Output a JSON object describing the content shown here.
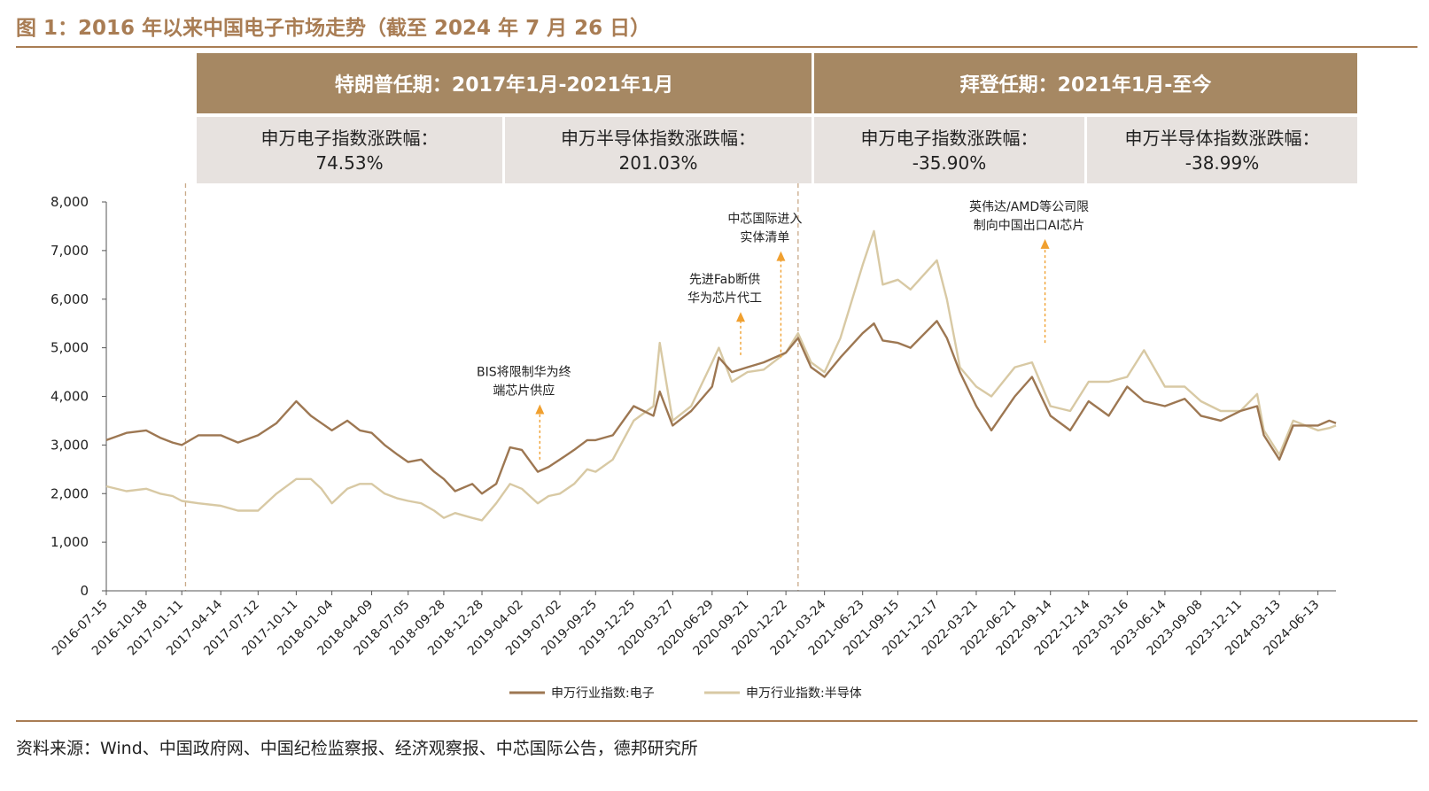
{
  "figure_title": "图 1：2016 年以来中国电子市场走势（截至 2024 年 7 月 26 日）",
  "source_note": "资料来源：Wind、中国政府网、中国纪检监察报、经济观察报、中芯国际公告，德邦研究所",
  "periods": [
    {
      "title": "特朗普任期：2017年1月-2021年1月",
      "cells": [
        {
          "label": "申万电子指数涨跌幅：",
          "value": "74.53%"
        },
        {
          "label": "申万半导体指数涨跌幅：",
          "value": "201.03%"
        }
      ]
    },
    {
      "title": "拜登任期：2021年1月-至今",
      "cells": [
        {
          "label": "申万电子指数涨跌幅：",
          "value": "-35.90%"
        },
        {
          "label": "申万半导体指数涨跌幅：",
          "value": "-38.99%"
        }
      ]
    }
  ],
  "colors": {
    "brand": "#a97d54",
    "header_fill": "#a68863",
    "cell_fill": "#e7e2df",
    "electronics": "#9d7752",
    "semiconductor": "#d8c9a4",
    "annotation_arrow": "#f0a030",
    "divider": "#c9a988"
  },
  "chart_data": {
    "type": "line",
    "title": "",
    "xlabel": "",
    "ylabel": "",
    "ylim": [
      0,
      8000
    ],
    "y_ticks": [
      "8,000",
      "7,000",
      "6,000",
      "5,000",
      "4,000",
      "3,000",
      "2,000",
      "1,000",
      "0"
    ],
    "x_tick_labels": [
      "2016-07-15",
      "2016-10-18",
      "2017-01-11",
      "2017-04-14",
      "2017-07-12",
      "2017-10-11",
      "2018-01-04",
      "2018-04-09",
      "2018-07-05",
      "2018-09-28",
      "2018-12-28",
      "2019-04-02",
      "2019-07-02",
      "2019-09-25",
      "2019-12-25",
      "2020-03-27",
      "2020-06-29",
      "2020-09-21",
      "2020-12-22",
      "2021-03-24",
      "2021-06-23",
      "2021-09-15",
      "2021-12-17",
      "2022-03-21",
      "2022-06-21",
      "2022-09-14",
      "2022-12-14",
      "2023-03-16",
      "2023-06-14",
      "2023-09-08",
      "2023-12-11",
      "2024-03-13",
      "2024-06-13"
    ],
    "dividers": [
      "2017-01-20",
      "2021-01-20"
    ],
    "legend": "bottom",
    "grid": false,
    "series": [
      {
        "name": "申万行业指数:电子",
        "color": "#9d7752",
        "x": [
          "2016-07-15",
          "2016-09-01",
          "2016-10-18",
          "2016-11-20",
          "2016-12-20",
          "2017-01-11",
          "2017-02-20",
          "2017-04-14",
          "2017-05-25",
          "2017-07-12",
          "2017-08-25",
          "2017-10-11",
          "2017-11-15",
          "2017-12-10",
          "2018-01-04",
          "2018-02-10",
          "2018-03-12",
          "2018-04-09",
          "2018-05-10",
          "2018-06-10",
          "2018-07-05",
          "2018-08-05",
          "2018-09-05",
          "2018-09-28",
          "2018-10-25",
          "2018-12-05",
          "2018-12-28",
          "2019-01-31",
          "2019-03-05",
          "2019-04-02",
          "2019-05-10",
          "2019-06-05",
          "2019-07-02",
          "2019-08-05",
          "2019-09-05",
          "2019-09-25",
          "2019-11-05",
          "2019-12-25",
          "2020-02-10",
          "2020-02-25",
          "2020-03-27",
          "2020-05-10",
          "2020-06-29",
          "2020-07-15",
          "2020-08-15",
          "2020-09-21",
          "2020-10-30",
          "2020-12-22",
          "2021-01-20",
          "2021-02-20",
          "2021-03-24",
          "2021-05-01",
          "2021-06-23",
          "2021-07-20",
          "2021-08-10",
          "2021-09-15",
          "2021-10-15",
          "2021-12-17",
          "2022-01-10",
          "2022-02-10",
          "2022-03-21",
          "2022-04-26",
          "2022-06-21",
          "2022-08-01",
          "2022-09-14",
          "2022-10-31",
          "2022-12-14",
          "2023-01-31",
          "2023-03-16",
          "2023-04-25",
          "2023-06-14",
          "2023-07-31",
          "2023-09-08",
          "2023-10-25",
          "2023-12-11",
          "2024-01-20",
          "2024-02-05",
          "2024-03-13",
          "2024-04-15",
          "2024-06-13",
          "2024-07-10",
          "2024-07-26"
        ],
        "values": [
          3100,
          3250,
          3300,
          3150,
          3050,
          3000,
          3200,
          3200,
          3050,
          3200,
          3450,
          3900,
          3600,
          3450,
          3300,
          3500,
          3300,
          3250,
          3000,
          2800,
          2650,
          2700,
          2450,
          2300,
          2050,
          2200,
          2000,
          2200,
          2950,
          2900,
          2450,
          2550,
          2700,
          2900,
          3100,
          3100,
          3200,
          3800,
          3600,
          4100,
          3400,
          3700,
          4200,
          4800,
          4500,
          4600,
          4700,
          4900,
          5200,
          4600,
          4400,
          4800,
          5300,
          5500,
          5150,
          5100,
          5000,
          5550,
          5200,
          4500,
          3800,
          3300,
          4000,
          4400,
          3600,
          3300,
          3900,
          3600,
          4200,
          3900,
          3800,
          3950,
          3600,
          3500,
          3700,
          3800,
          3200,
          2700,
          3400,
          3400,
          3500,
          3450
        ]
      },
      {
        "name": "申万行业指数:半导体",
        "color": "#d8c9a4",
        "x": [
          "2016-07-15",
          "2016-09-01",
          "2016-10-18",
          "2016-11-20",
          "2016-12-20",
          "2017-01-11",
          "2017-02-20",
          "2017-04-14",
          "2017-05-25",
          "2017-07-12",
          "2017-08-25",
          "2017-10-11",
          "2017-11-15",
          "2017-12-10",
          "2018-01-04",
          "2018-02-10",
          "2018-03-12",
          "2018-04-09",
          "2018-05-10",
          "2018-06-10",
          "2018-07-05",
          "2018-08-05",
          "2018-09-05",
          "2018-09-28",
          "2018-10-25",
          "2018-12-05",
          "2018-12-28",
          "2019-01-31",
          "2019-03-05",
          "2019-04-02",
          "2019-05-10",
          "2019-06-05",
          "2019-07-02",
          "2019-08-05",
          "2019-09-05",
          "2019-09-25",
          "2019-11-05",
          "2019-12-25",
          "2020-02-10",
          "2020-02-25",
          "2020-03-27",
          "2020-05-10",
          "2020-06-29",
          "2020-07-15",
          "2020-08-15",
          "2020-09-21",
          "2020-10-30",
          "2020-12-22",
          "2021-01-20",
          "2021-02-20",
          "2021-03-24",
          "2021-05-01",
          "2021-06-23",
          "2021-07-20",
          "2021-08-10",
          "2021-09-15",
          "2021-10-15",
          "2021-12-17",
          "2022-01-10",
          "2022-02-10",
          "2022-03-21",
          "2022-04-26",
          "2022-06-21",
          "2022-08-01",
          "2022-09-14",
          "2022-10-31",
          "2022-12-14",
          "2023-01-31",
          "2023-03-16",
          "2023-04-25",
          "2023-06-14",
          "2023-07-31",
          "2023-09-08",
          "2023-10-25",
          "2023-12-11",
          "2024-01-20",
          "2024-02-05",
          "2024-03-13",
          "2024-04-15",
          "2024-06-13",
          "2024-07-10",
          "2024-07-26"
        ],
        "values": [
          2150,
          2050,
          2100,
          2000,
          1950,
          1850,
          1800,
          1750,
          1650,
          1650,
          2000,
          2300,
          2300,
          2100,
          1800,
          2100,
          2200,
          2200,
          2000,
          1900,
          1850,
          1800,
          1650,
          1500,
          1600,
          1500,
          1450,
          1800,
          2200,
          2100,
          1800,
          1950,
          2000,
          2200,
          2500,
          2450,
          2700,
          3500,
          3800,
          5100,
          3500,
          3800,
          4700,
          5000,
          4300,
          4500,
          4550,
          4900,
          5300,
          4700,
          4500,
          5200,
          6700,
          7400,
          6300,
          6400,
          6200,
          6800,
          6000,
          4600,
          4200,
          4000,
          4600,
          4700,
          3800,
          3700,
          4300,
          4300,
          4400,
          4950,
          4200,
          4200,
          3900,
          3700,
          3700,
          4050,
          3300,
          2800,
          3500,
          3300,
          3350,
          3400
        ]
      }
    ],
    "annotations": [
      {
        "text": [
          "BIS将限制华为终",
          "端芯片供应"
        ],
        "date": "2019-05-15",
        "arrow_from": 2700,
        "arrow_to": 3800
      },
      {
        "text": [
          "先进Fab断供",
          "华为芯片代工"
        ],
        "date": "2020-09-05",
        "arrow_from": 4850,
        "arrow_to": 5700
      },
      {
        "text": [
          "中芯国际进入",
          "实体清单"
        ],
        "date": "2020-12-10",
        "arrow_from": 4800,
        "arrow_to": 6950
      },
      {
        "text": [
          "英伟达/AMD等公司限",
          "制向中国出口AI芯片"
        ],
        "date": "2022-09-01",
        "arrow_from": 5100,
        "arrow_to": 7200
      }
    ]
  }
}
